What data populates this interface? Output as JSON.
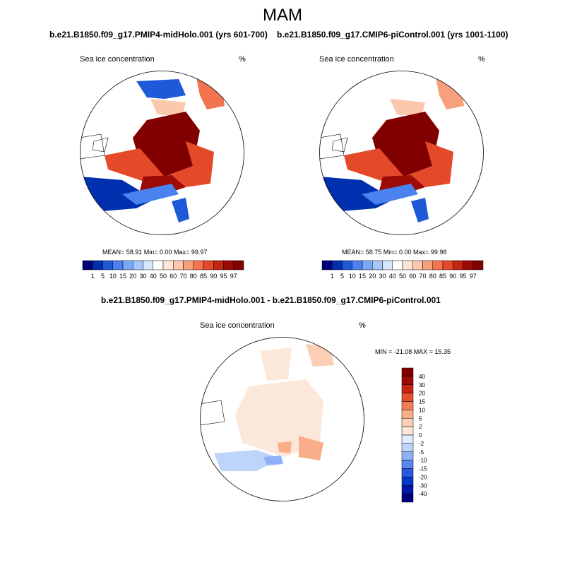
{
  "season_title": "MAM",
  "colors": {
    "ice_seq": [
      "#000078",
      "#0030b0",
      "#1e5ad8",
      "#4a82f0",
      "#7aa8f8",
      "#a8c8fc",
      "#d6e6fe",
      "#ffffff",
      "#fde6d6",
      "#fbc8ae",
      "#f8a07c",
      "#f27450",
      "#e44a2a",
      "#c42412",
      "#9a0c04",
      "#800000"
    ],
    "diff": [
      "#00007f",
      "#0018a8",
      "#0038c8",
      "#2858e0",
      "#5a86f2",
      "#8fb0f8",
      "#bdd4fb",
      "#e0ecfd",
      "#fce8da",
      "#fccfb4",
      "#f9ad88",
      "#f47d52",
      "#e5502c",
      "#c42410",
      "#9c0a04",
      "#800000"
    ],
    "land": "#ffffff",
    "coast": "#000000"
  },
  "panel_left": {
    "title": "b.e21.B1850.f09_g17.PMIP4-midHolo.001 (yrs 601-700)",
    "variable": "Sea ice concentration",
    "units": "%",
    "stats": "MEAN=  58.91  Min=   0.00  Max=  99.97"
  },
  "panel_right": {
    "title": "b.e21.B1850.f09_g17.CMIP6-piControl.001 (yrs 1001-1100)",
    "variable": "Sea ice concentration",
    "units": "%",
    "stats": "MEAN=  58.75  Min=   0.00  Max=  99.98"
  },
  "colorbar_labels": [
    "1",
    "5",
    "10",
    "15",
    "20",
    "30",
    "40",
    "50",
    "60",
    "70",
    "80",
    "85",
    "90",
    "95",
    "97"
  ],
  "panel_diff": {
    "title": "b.e21.B1850.f09_g17.PMIP4-midHolo.001 - b.e21.B1850.f09_g17.CMIP6-piControl.001",
    "variable": "Sea ice concentration",
    "units": "%",
    "minmax": "MIN = -21.08 MAX =  15.35",
    "labels": [
      "40",
      "30",
      "20",
      "15",
      "10",
      "5",
      "2",
      "0",
      "-2",
      "-5",
      "-10",
      "-15",
      "-20",
      "-30",
      "-40"
    ]
  }
}
